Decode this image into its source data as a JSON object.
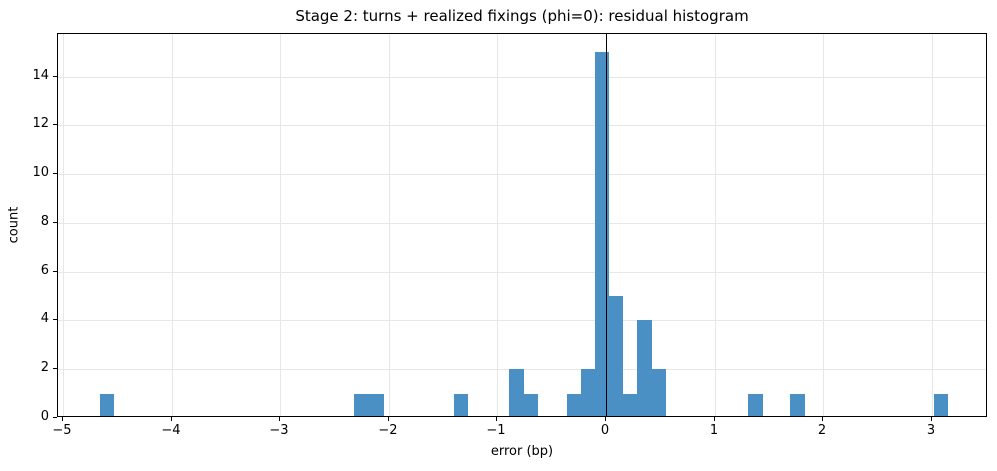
{
  "title": "Stage 2: turns + realized fixings (phi=0): residual histogram",
  "colors": {
    "bar": "#4a90c5",
    "grid": "#e7e7e7",
    "spine": "#000000",
    "zero_line": "#000000",
    "text": "#000000",
    "background": "#ffffff"
  },
  "chart_data": {
    "type": "bar",
    "subtype": "histogram",
    "title": "Stage 2: turns + realized fixings (phi=0): residual histogram",
    "xlabel": "error (bp)",
    "ylabel": "count",
    "xlim": [
      -5.05,
      3.52
    ],
    "ylim": [
      0,
      15.75
    ],
    "grid": true,
    "legend": "none",
    "zero_vline_x": 0,
    "xticks": {
      "values": [
        -5,
        -4,
        -3,
        -2,
        -1,
        0,
        1,
        2,
        3
      ],
      "labels": [
        "−5",
        "−4",
        "−3",
        "−2",
        "−1",
        "0",
        "1",
        "2",
        "3"
      ]
    },
    "yticks": {
      "values": [
        0,
        2,
        4,
        6,
        8,
        10,
        12,
        14
      ],
      "labels": [
        "0",
        "2",
        "4",
        "6",
        "8",
        "10",
        "12",
        "14"
      ]
    },
    "bars": [
      {
        "x0": -4.66,
        "x1": -4.53,
        "count": 1
      },
      {
        "x0": -2.32,
        "x1": -2.19,
        "count": 1
      },
      {
        "x0": -2.19,
        "x1": -2.05,
        "count": 1
      },
      {
        "x0": -1.4,
        "x1": -1.27,
        "count": 1
      },
      {
        "x0": -0.89,
        "x1": -0.76,
        "count": 2
      },
      {
        "x0": -0.76,
        "x1": -0.63,
        "count": 1
      },
      {
        "x0": -0.36,
        "x1": -0.23,
        "count": 1
      },
      {
        "x0": -0.23,
        "x1": -0.1,
        "count": 2
      },
      {
        "x0": -0.1,
        "x1": 0.03,
        "count": 15
      },
      {
        "x0": 0.03,
        "x1": 0.16,
        "count": 5
      },
      {
        "x0": 0.16,
        "x1": 0.29,
        "count": 1
      },
      {
        "x0": 0.29,
        "x1": 0.42,
        "count": 4
      },
      {
        "x0": 0.42,
        "x1": 0.55,
        "count": 2
      },
      {
        "x0": 1.31,
        "x1": 1.45,
        "count": 1
      },
      {
        "x0": 1.7,
        "x1": 1.83,
        "count": 1
      },
      {
        "x0": 3.02,
        "x1": 3.15,
        "count": 1
      }
    ]
  }
}
